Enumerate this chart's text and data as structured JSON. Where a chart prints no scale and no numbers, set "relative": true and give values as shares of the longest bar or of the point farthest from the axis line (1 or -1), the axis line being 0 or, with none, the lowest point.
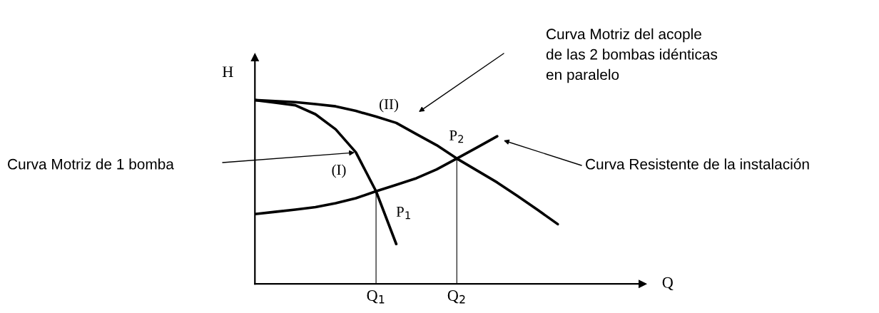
{
  "chart_data": {
    "type": "line",
    "relative": true,
    "xlabel": "Q",
    "ylabel": "H",
    "categories": [
      null,
      null,
      null,
      null,
      null,
      null,
      "Q$_{1}$",
      null,
      null,
      null,
      "Q$_{2}$",
      null,
      null,
      null,
      null,
      null,
      null,
      null,
      null,
      null
    ],
    "series": [
      {
        "color": "#000000",
        "values": [
          1.0,
          0.995,
          0.989,
          0.978,
          0.966,
          0.941,
          0.91,
          0.876,
          0.815,
          0.755,
          0.682,
          0.617,
          0.552,
          0.479,
          0.403,
          0.325,
          null,
          null,
          null,
          null
        ]
      },
      {
        "color": "#000000",
        "values": [
          1.0,
          0.986,
          0.972,
          0.923,
          0.841,
          0.716,
          0.504,
          0.217,
          null,
          null,
          null,
          null,
          null,
          null,
          null,
          null,
          null,
          null,
          null,
          null
        ]
      },
      {
        "color": "#000000",
        "values": [
          0.38,
          0.392,
          0.404,
          0.418,
          0.439,
          0.466,
          0.504,
          0.539,
          0.575,
          0.623,
          0.682,
          0.742,
          0.803,
          null,
          null,
          null,
          null,
          null,
          null,
          null
        ]
      }
    ],
    "annotations": [
      "Curva Motriz del acople\nde las 2 bombas idénticas\nen paralelo",
      "Curva Motriz de 1 bomba",
      "Curva Resistente de la instalación",
      "(I)",
      "(II)",
      {
        "text": "P$_{1}$",
        "x": "Q$_{1}$",
        "y": 0.504
      },
      {
        "text": "P$_{2}$",
        "x": "Q$_{2}$",
        "y": 0.682
      }
    ],
    "grid": false,
    "legend": false,
    "marker": "none",
    "line_style": "solid"
  }
}
